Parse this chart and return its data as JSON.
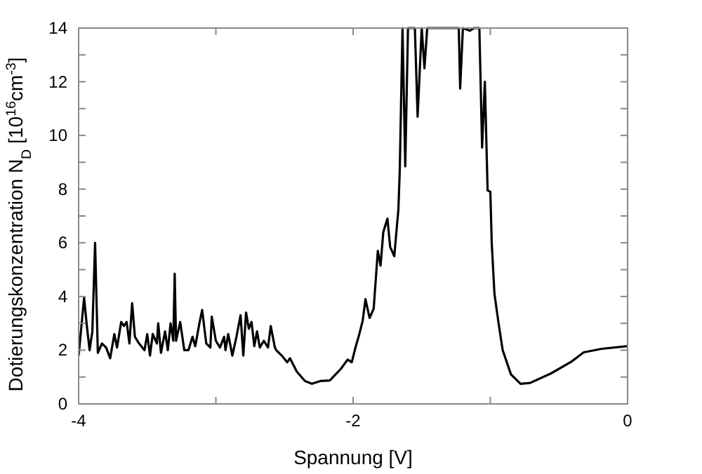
{
  "chart_data": {
    "type": "line",
    "xlabel": "Spannung [V]",
    "ylabel": "Dotierungskonzentration N$_{D}$ [10$^{16}$cm$^{-3}$]",
    "xlim": [
      -4,
      0
    ],
    "ylim": [
      0,
      14
    ],
    "xticks": [
      -4,
      {
        "value": -3,
        "label": null
      },
      -2,
      {
        "value": -1,
        "label": null
      },
      0
    ],
    "yticks": [
      0,
      {
        "value": 1,
        "label": null
      },
      2,
      {
        "value": 3,
        "label": null
      },
      4,
      {
        "value": 5,
        "label": null
      },
      6,
      {
        "value": 7,
        "label": null
      },
      8,
      {
        "value": 9,
        "label": null
      },
      10,
      {
        "value": 11,
        "label": null
      },
      12,
      {
        "value": 13,
        "label": null
      },
      14
    ],
    "grid": false,
    "marker": "none",
    "line_style": "solid",
    "series": [
      {
        "color": "#000000",
        "x": [
          -4,
          -3.96,
          -3.94,
          -3.92,
          -3.9,
          -3.88,
          -3.86,
          -3.83,
          -3.8,
          -3.77,
          -3.74,
          -3.72,
          -3.69,
          -3.67,
          -3.65,
          -3.63,
          -3.61,
          -3.59,
          -3.56,
          -3.52,
          -3.5,
          -3.48,
          -3.46,
          -3.43,
          -3.42,
          -3.4,
          -3.37,
          -3.35,
          -3.33,
          -3.31,
          -3.3,
          -3.29,
          -3.26,
          -3.23,
          -3.2,
          -3.17,
          -3.15,
          -3.12,
          -3.1,
          -3.07,
          -3.04,
          -3.03,
          -3,
          -2.97,
          -2.94,
          -2.93,
          -2.91,
          -2.88,
          -2.85,
          -2.82,
          -2.8,
          -2.78,
          -2.76,
          -2.74,
          -2.72,
          -2.7,
          -2.68,
          -2.65,
          -2.62,
          -2.6,
          -2.57,
          -2.56,
          -2.52,
          -2.48,
          -2.46,
          -2.41,
          -2.35,
          -2.3,
          -2.24,
          -2.17,
          -2.09,
          -2.04,
          -2.01,
          -1.98,
          -1.96,
          -1.93,
          -1.91,
          -1.88,
          -1.85,
          -1.82,
          -1.8,
          -1.78,
          -1.75,
          -1.73,
          -1.7,
          -1.67,
          -1.66,
          -1.64,
          -1.62,
          -1.6,
          -1.55,
          -1.53,
          -1.5,
          -1.48,
          -1.46,
          -1.23,
          -1.22,
          -1.2,
          -1.15,
          -1.12,
          -1.08,
          -1.06,
          -1.04,
          -1.02,
          -1,
          -0.99,
          -0.97,
          -0.94,
          -0.91,
          -0.85,
          -0.78,
          -0.71,
          -0.56,
          -0.41,
          -0.32,
          -0.19,
          0
        ],
        "values": [
          1.8,
          3.95,
          2.9,
          2,
          2.7,
          6,
          1.9,
          2.25,
          2.1,
          1.7,
          2.6,
          2.1,
          3.05,
          2.9,
          3.05,
          2.25,
          3.75,
          2.5,
          2.25,
          2,
          2.6,
          1.8,
          2.6,
          2.25,
          3,
          1.9,
          2.7,
          2,
          3,
          2.35,
          4.85,
          2.35,
          3.05,
          2,
          2,
          2.5,
          2.15,
          3,
          3.5,
          2.25,
          2.1,
          3.25,
          2.35,
          2.1,
          2.5,
          2,
          2.6,
          1.8,
          2.5,
          3.3,
          1.8,
          3.4,
          2.8,
          3.05,
          2.15,
          2.7,
          2.1,
          2.35,
          2.1,
          2.9,
          2.1,
          2,
          1.8,
          1.55,
          1.7,
          1.2,
          0.85,
          0.75,
          0.85,
          0.87,
          1.3,
          1.65,
          1.55,
          2.15,
          2.5,
          3.1,
          3.9,
          3.2,
          3.55,
          5.7,
          5.15,
          6.4,
          6.9,
          5.85,
          5.5,
          7.25,
          8.7,
          14,
          8.85,
          14,
          14,
          10.7,
          14,
          12.5,
          14,
          14,
          11.75,
          14,
          13.9,
          14,
          14,
          9.55,
          12,
          7.95,
          7.9,
          6,
          4.1,
          3,
          2,
          1.1,
          0.75,
          0.78,
          1.13,
          1.57,
          1.92,
          2.05,
          2.15
        ]
      }
    ]
  }
}
